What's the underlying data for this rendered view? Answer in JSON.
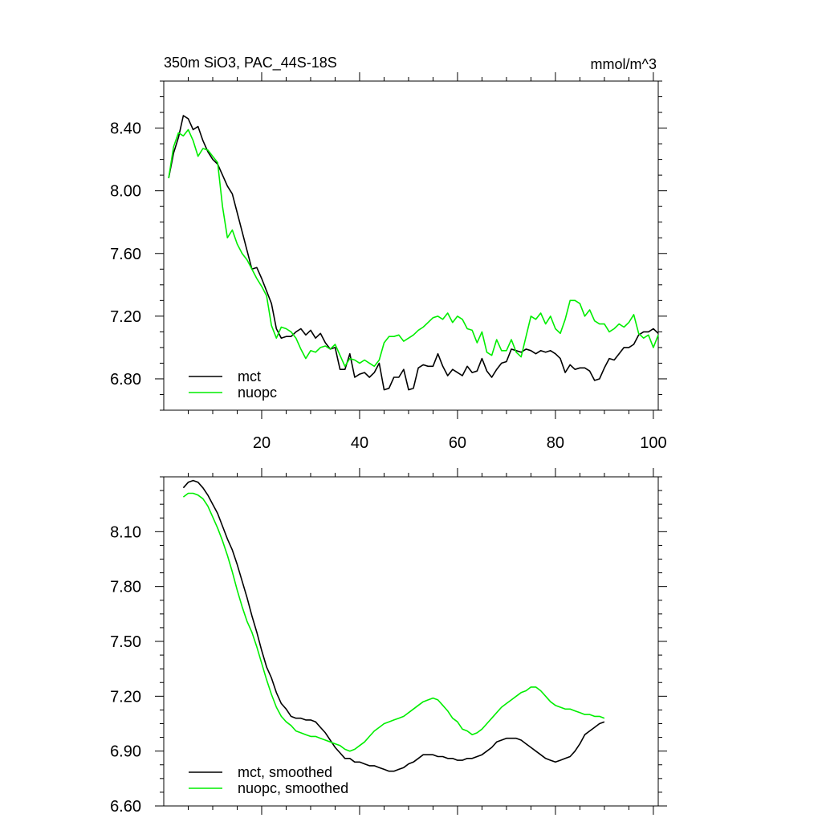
{
  "colors": {
    "mct": "#000000",
    "nuopc": "#00ee00"
  },
  "chart_data": [
    {
      "type": "line",
      "title": "350m SiO3, PAC_44S-18S",
      "units": "mmol/m^3",
      "xlim": [
        0,
        101
      ],
      "ylim": [
        6.6,
        8.7
      ],
      "x_ticks": [
        20,
        40,
        60,
        80,
        100
      ],
      "x_tick_labels": [
        "20",
        "40",
        "60",
        "80",
        "100"
      ],
      "y_ticks": [
        6.8,
        7.2,
        7.6,
        8.0,
        8.4
      ],
      "y_tick_labels": [
        "6.80",
        "7.20",
        "7.60",
        "8.00",
        "8.40"
      ],
      "x_start": 1,
      "legend_position": "bottom-left",
      "series": [
        {
          "name": "mct",
          "color": "#000000",
          "values": [
            8.08,
            8.24,
            8.34,
            8.48,
            8.46,
            8.39,
            8.41,
            8.32,
            8.25,
            8.2,
            8.17,
            8.1,
            8.03,
            7.98,
            7.86,
            7.74,
            7.62,
            7.5,
            7.51,
            7.44,
            7.36,
            7.28,
            7.12,
            7.06,
            7.07,
            7.07,
            7.1,
            7.12,
            7.08,
            7.11,
            7.06,
            7.09,
            7.03,
            6.99,
            7.0,
            6.86,
            6.86,
            6.96,
            6.81,
            6.83,
            6.84,
            6.81,
            6.84,
            6.9,
            6.73,
            6.74,
            6.81,
            6.81,
            6.86,
            6.73,
            6.74,
            6.87,
            6.89,
            6.88,
            6.88,
            6.96,
            6.88,
            6.82,
            6.86,
            6.84,
            6.82,
            6.88,
            6.84,
            6.85,
            6.93,
            6.85,
            6.81,
            6.86,
            6.9,
            6.91,
            6.99,
            6.98,
            6.97,
            6.99,
            6.98,
            6.96,
            6.98,
            6.97,
            6.98,
            6.96,
            6.93,
            6.84,
            6.89,
            6.86,
            6.87,
            6.87,
            6.85,
            6.79,
            6.8,
            6.87,
            6.93,
            6.92,
            6.96,
            7.0,
            7.0,
            7.02,
            7.08,
            7.1,
            7.1,
            7.12,
            7.09
          ]
        },
        {
          "name": "nuopc",
          "color": "#00ee00",
          "values": [
            8.08,
            8.28,
            8.37,
            8.35,
            8.39,
            8.32,
            8.22,
            8.27,
            8.26,
            8.22,
            8.18,
            7.9,
            7.7,
            7.75,
            7.66,
            7.6,
            7.56,
            7.5,
            7.44,
            7.39,
            7.33,
            7.14,
            7.06,
            7.13,
            7.12,
            7.1,
            7.06,
            6.99,
            6.93,
            6.98,
            6.97,
            7.0,
            7.01,
            6.99,
            7.02,
            6.95,
            6.88,
            6.93,
            6.92,
            6.9,
            6.92,
            6.9,
            6.88,
            6.92,
            7.03,
            7.07,
            7.07,
            7.08,
            7.04,
            7.06,
            7.08,
            7.11,
            7.13,
            7.16,
            7.19,
            7.2,
            7.18,
            7.22,
            7.16,
            7.2,
            7.18,
            7.12,
            7.11,
            7.03,
            7.1,
            6.97,
            6.95,
            7.05,
            6.98,
            6.98,
            7.05,
            6.97,
            6.94,
            7.07,
            7.2,
            7.18,
            7.22,
            7.15,
            7.2,
            7.12,
            7.09,
            7.18,
            7.3,
            7.3,
            7.28,
            7.2,
            7.24,
            7.17,
            7.15,
            7.15,
            7.1,
            7.12,
            7.15,
            7.13,
            7.16,
            7.21,
            7.09,
            7.06,
            7.08,
            7.0,
            7.08
          ]
        }
      ]
    },
    {
      "type": "line",
      "title": "",
      "xlim": [
        0,
        101
      ],
      "ylim": [
        6.6,
        8.4
      ],
      "x_ticks": [
        20,
        40,
        60,
        80,
        100
      ],
      "y_ticks": [
        6.6,
        6.9,
        7.2,
        7.5,
        7.8,
        8.1
      ],
      "y_tick_labels": [
        "6.60",
        "6.90",
        "7.20",
        "7.50",
        "7.80",
        "8.10"
      ],
      "x_start": 4,
      "legend_position": "bottom-left",
      "series": [
        {
          "name": "mct, smoothed",
          "color": "#000000",
          "values": [
            8.34,
            8.37,
            8.38,
            8.37,
            8.34,
            8.3,
            8.25,
            8.2,
            8.13,
            8.06,
            8.0,
            7.92,
            7.83,
            7.74,
            7.64,
            7.55,
            7.45,
            7.36,
            7.3,
            7.22,
            7.16,
            7.13,
            7.09,
            7.08,
            7.08,
            7.07,
            7.07,
            7.06,
            7.03,
            7.0,
            6.96,
            6.92,
            6.89,
            6.86,
            6.86,
            6.84,
            6.84,
            6.83,
            6.82,
            6.82,
            6.81,
            6.8,
            6.79,
            6.79,
            6.8,
            6.81,
            6.83,
            6.84,
            6.86,
            6.88,
            6.88,
            6.88,
            6.87,
            6.87,
            6.86,
            6.86,
            6.85,
            6.85,
            6.86,
            6.86,
            6.87,
            6.88,
            6.9,
            6.92,
            6.95,
            6.96,
            6.97,
            6.97,
            6.97,
            6.96,
            6.94,
            6.92,
            6.9,
            6.88,
            6.86,
            6.85,
            6.84,
            6.85,
            6.86,
            6.87,
            6.9,
            6.94,
            6.99,
            7.01,
            7.03,
            7.05,
            7.06
          ]
        },
        {
          "name": "nuopc, smoothed",
          "color": "#00ee00",
          "values": [
            8.29,
            8.31,
            8.31,
            8.3,
            8.28,
            8.24,
            8.18,
            8.12,
            8.05,
            7.97,
            7.88,
            7.78,
            7.69,
            7.61,
            7.55,
            7.47,
            7.38,
            7.29,
            7.21,
            7.14,
            7.09,
            7.06,
            7.04,
            7.01,
            7.0,
            6.99,
            6.98,
            6.98,
            6.97,
            6.96,
            6.95,
            6.94,
            6.93,
            6.91,
            6.9,
            6.91,
            6.93,
            6.95,
            6.98,
            7.01,
            7.03,
            7.05,
            7.06,
            7.07,
            7.08,
            7.09,
            7.11,
            7.13,
            7.15,
            7.17,
            7.18,
            7.19,
            7.18,
            7.15,
            7.12,
            7.08,
            7.06,
            7.02,
            7.01,
            6.99,
            7.0,
            7.02,
            7.05,
            7.08,
            7.11,
            7.14,
            7.16,
            7.18,
            7.2,
            7.22,
            7.23,
            7.25,
            7.25,
            7.23,
            7.2,
            7.17,
            7.15,
            7.14,
            7.13,
            7.13,
            7.12,
            7.11,
            7.1,
            7.1,
            7.09,
            7.09,
            7.08
          ]
        }
      ]
    }
  ]
}
